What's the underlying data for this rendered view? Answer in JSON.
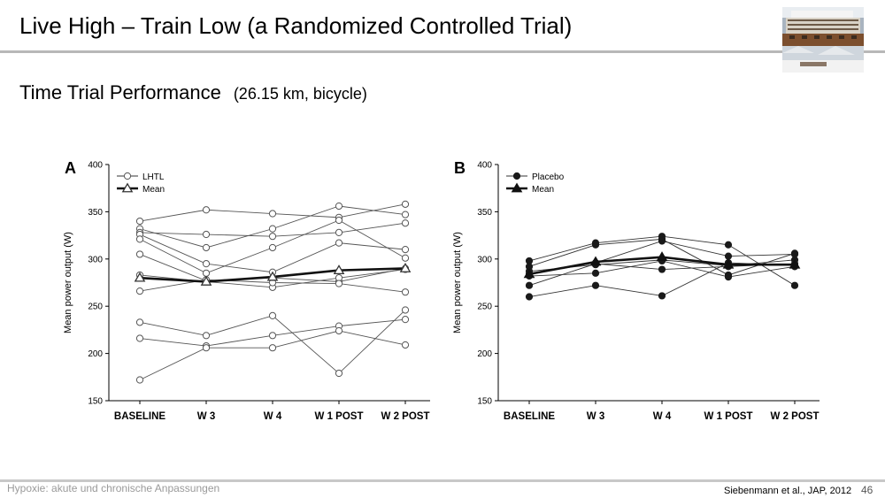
{
  "slide": {
    "title": "Live High – Train Low (a Randomized Controlled Trial)",
    "subtitle": "Time Trial Performance",
    "subtitle_note": "(26.15 km, bicycle)",
    "footer_left": "Hypoxie: akute und chronische Anpassungen",
    "footer_right": "Siebenmann et al., JAP, 2012",
    "page_number": "46"
  },
  "chart_data": [
    {
      "type": "line",
      "panel_label": "A",
      "ylabel": "Mean power output (W)",
      "ylim": [
        150,
        400
      ],
      "yticks": [
        150,
        200,
        250,
        300,
        350,
        400
      ],
      "categories": [
        "BASELINE",
        "W 3",
        "W 4",
        "W 1 POST",
        "W 2 POST"
      ],
      "legend": {
        "position": "top-left",
        "entries": [
          "LHTL",
          "Mean"
        ]
      },
      "marker": "open-circle",
      "mean_marker": "open-triangle",
      "series": [
        {
          "values": [
            340,
            352,
            348,
            344,
            358
          ]
        },
        {
          "values": [
            332,
            312,
            332,
            356,
            347
          ]
        },
        {
          "values": [
            328,
            326,
            324,
            328,
            338
          ]
        },
        {
          "values": [
            326,
            295,
            286,
            317,
            310
          ]
        },
        {
          "values": [
            321,
            285,
            312,
            341,
            301
          ]
        },
        {
          "values": [
            305,
            277,
            280,
            276,
            290
          ]
        },
        {
          "values": [
            283,
            276,
            270,
            280,
            289
          ]
        },
        {
          "values": [
            266,
            278,
            275,
            274,
            265
          ]
        },
        {
          "values": [
            233,
            219,
            240,
            179,
            246
          ]
        },
        {
          "values": [
            216,
            208,
            219,
            229,
            236
          ]
        },
        {
          "values": [
            172,
            206,
            206,
            224,
            209
          ]
        },
        {
          "name": "Mean",
          "mean": true,
          "values": [
            280,
            276,
            281,
            288,
            290
          ]
        }
      ]
    },
    {
      "type": "line",
      "panel_label": "B",
      "ylabel": "Mean power output (W)",
      "ylim": [
        150,
        400
      ],
      "yticks": [
        150,
        200,
        250,
        300,
        350,
        400
      ],
      "categories": [
        "BASELINE",
        "W 3",
        "W 4",
        "W 1 POST",
        "W 2 POST"
      ],
      "legend": {
        "position": "top-left",
        "entries": [
          "Placebo",
          "Mean"
        ]
      },
      "marker": "filled-circle",
      "mean_marker": "filled-triangle",
      "series": [
        {
          "values": [
            298,
            317,
            324,
            315,
            272
          ]
        },
        {
          "values": [
            292,
            315,
            321,
            283,
            306
          ]
        },
        {
          "values": [
            284,
            296,
            319,
            303,
            305
          ]
        },
        {
          "values": [
            287,
            294,
            299,
            293,
            299
          ]
        },
        {
          "values": [
            282,
            285,
            298,
            281,
            292
          ]
        },
        {
          "values": [
            272,
            295,
            289,
            292,
            295
          ]
        },
        {
          "values": [
            260,
            272,
            261,
            296,
            293
          ]
        },
        {
          "name": "Mean",
          "mean": true,
          "values": [
            284,
            297,
            302,
            294,
            294
          ]
        }
      ]
    }
  ]
}
